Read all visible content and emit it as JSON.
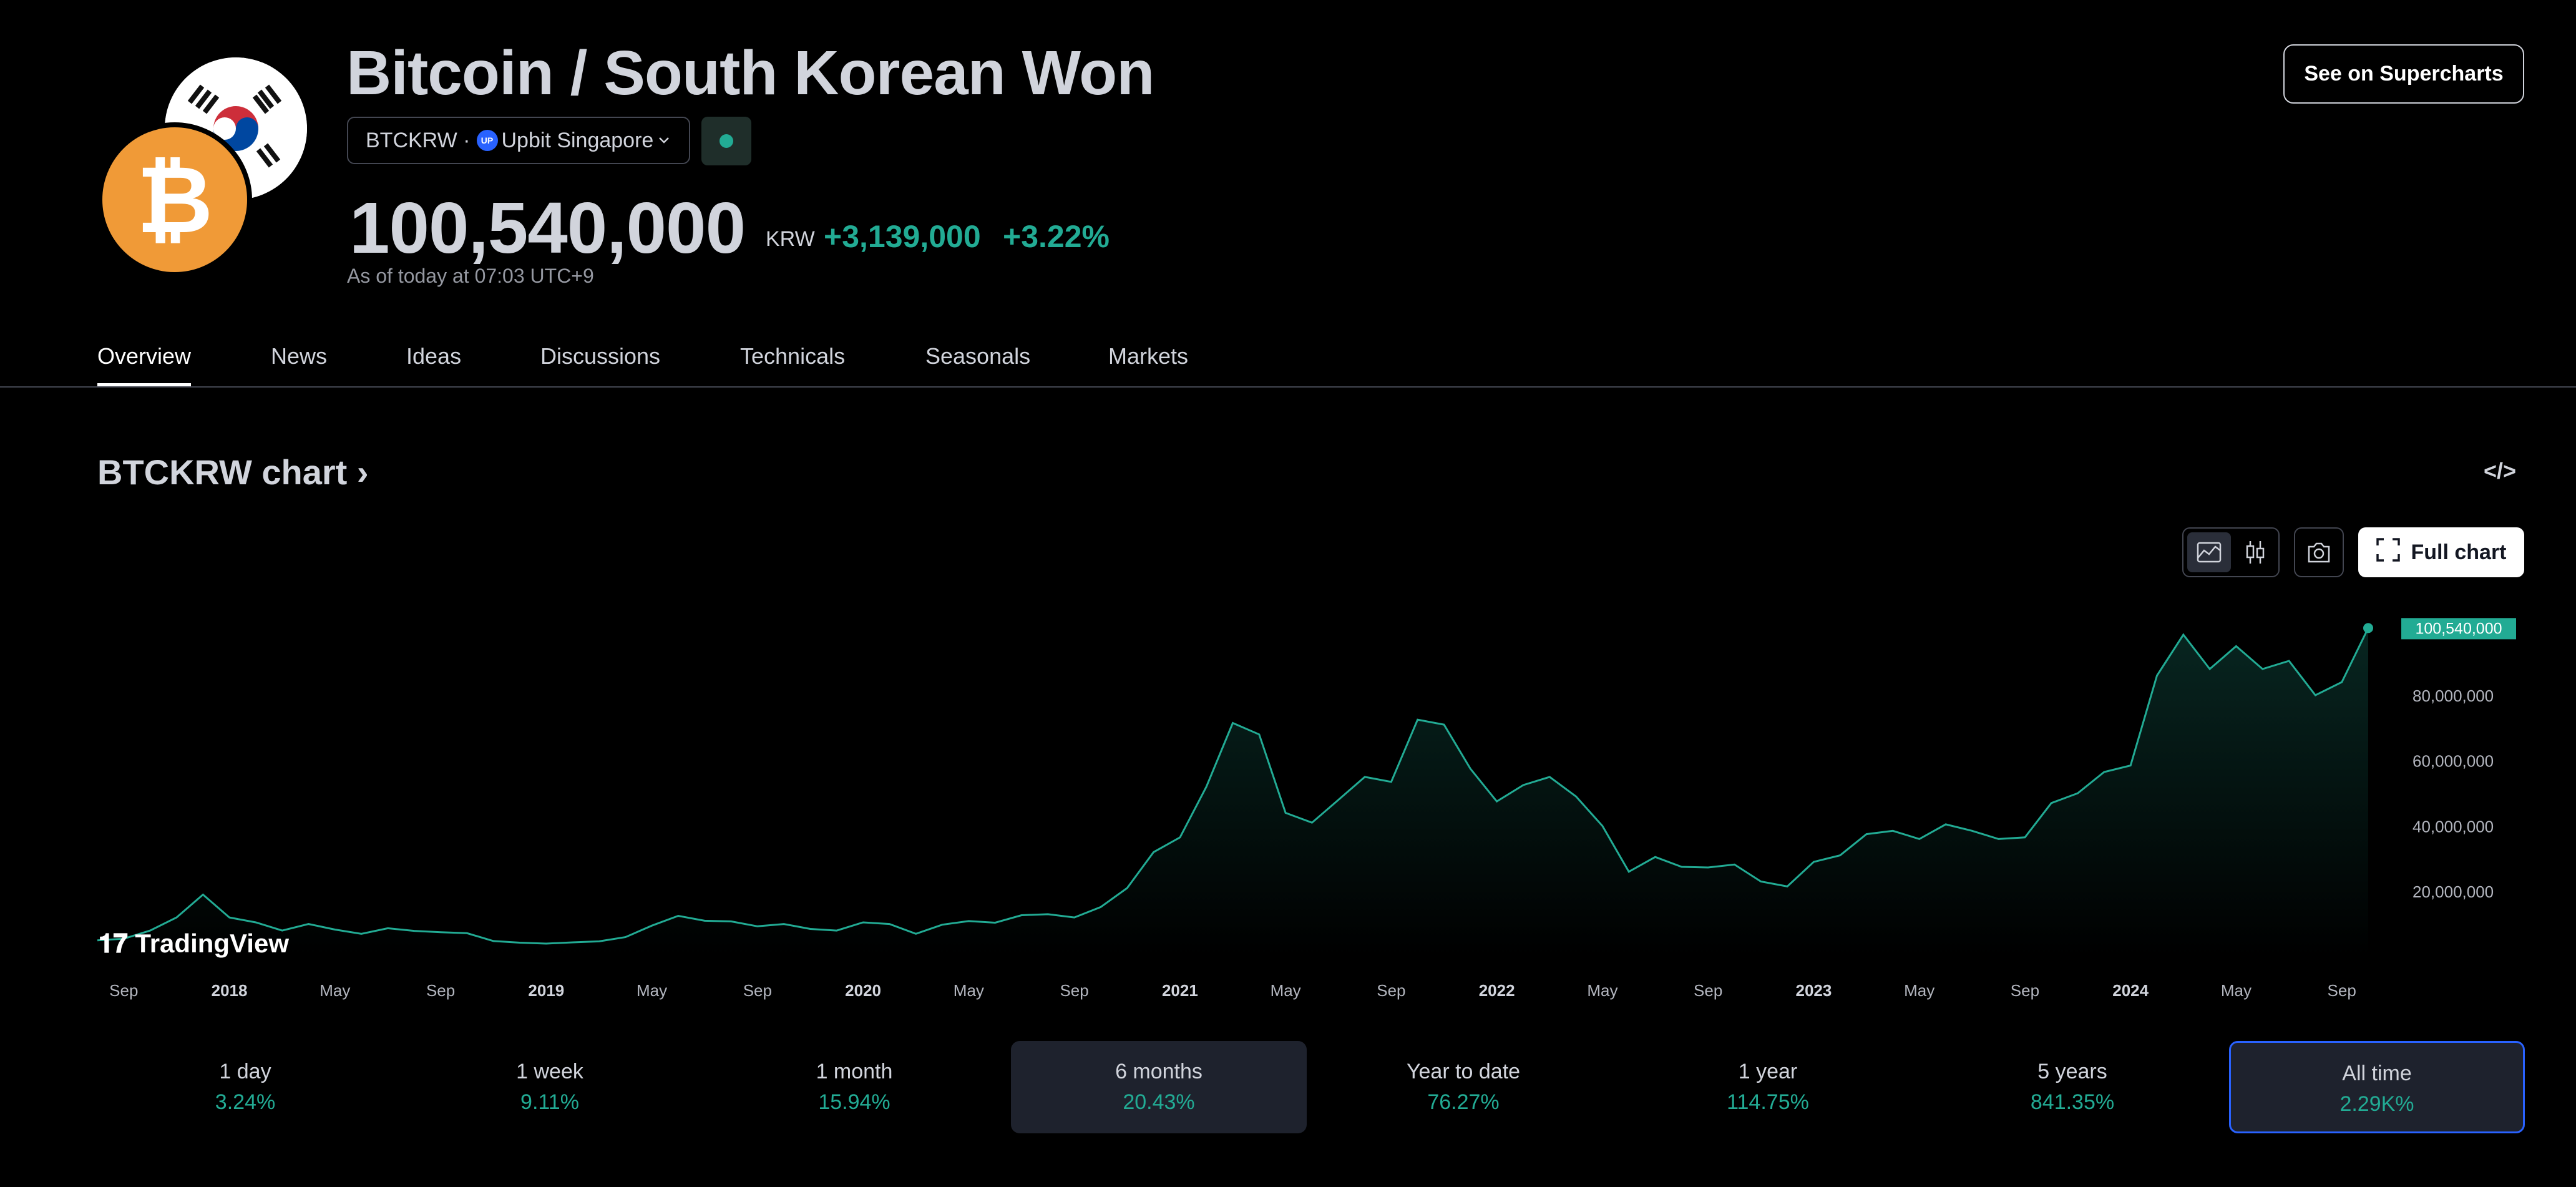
{
  "header": {
    "title": "Bitcoin / South Korean Won",
    "symbol": "BTCKRW",
    "exchange": "Upbit Singapore",
    "price": "100,540,000",
    "currency": "KRW",
    "change_abs": "+3,139,000",
    "change_pct": "+3.22%",
    "as_of": "As of today at 07:03 UTC+9",
    "supercharts_label": "See on Supercharts"
  },
  "tabs": [
    {
      "label": "Overview",
      "active": true
    },
    {
      "label": "News"
    },
    {
      "label": "Ideas"
    },
    {
      "label": "Discussions"
    },
    {
      "label": "Technicals"
    },
    {
      "label": "Seasonals"
    },
    {
      "label": "Markets"
    }
  ],
  "chart_header": {
    "title": "BTCKRW chart",
    "full_chart_label": "Full chart",
    "embed_icon": "code-icon",
    "line_icon": "area-chart-icon",
    "candle_icon": "candlestick-icon",
    "snapshot_icon": "camera-icon"
  },
  "tv_logo": "TradingView",
  "colors": {
    "line": "#22ab94",
    "accent": "#2962ff",
    "price_label_bg": "#22ab94"
  },
  "chart_data": {
    "type": "area",
    "series": [
      {
        "x": [
          "2017-08",
          "2017-09",
          "2017-10",
          "2017-11",
          "2017-12",
          "2018-01",
          "2018-02",
          "2018-03",
          "2018-04",
          "2018-05",
          "2018-06",
          "2018-07",
          "2018-08",
          "2018-09",
          "2018-10",
          "2018-11",
          "2018-12",
          "2019-01",
          "2019-02",
          "2019-03",
          "2019-04",
          "2019-05",
          "2019-06",
          "2019-07",
          "2019-08",
          "2019-09",
          "2019-10",
          "2019-11",
          "2019-12",
          "2020-01",
          "2020-02",
          "2020-03",
          "2020-04",
          "2020-05",
          "2020-06",
          "2020-07",
          "2020-08",
          "2020-09",
          "2020-10",
          "2020-11",
          "2020-12",
          "2021-01",
          "2021-02",
          "2021-03",
          "2021-04",
          "2021-05",
          "2021-06",
          "2021-07",
          "2021-08",
          "2021-09",
          "2021-10",
          "2021-11",
          "2021-12",
          "2022-01",
          "2022-02",
          "2022-03",
          "2022-04",
          "2022-05",
          "2022-06",
          "2022-07",
          "2022-08",
          "2022-09",
          "2022-10",
          "2022-11",
          "2022-12",
          "2023-01",
          "2023-02",
          "2023-03",
          "2023-04",
          "2023-05",
          "2023-06",
          "2023-07",
          "2023-08",
          "2023-09",
          "2023-10",
          "2023-11",
          "2023-12",
          "2024-01",
          "2024-02",
          "2024-03",
          "2024-04",
          "2024-05",
          "2024-06",
          "2024-07",
          "2024-08",
          "2024-09",
          "2024-10"
        ],
        "values": [
          5000000,
          5500000,
          8000000,
          12000000,
          19000000,
          12000000,
          10500000,
          8000000,
          10000000,
          8300000,
          7000000,
          8700000,
          7900000,
          7500000,
          7200000,
          4800000,
          4300000,
          4000000,
          4400000,
          4700000,
          6000000,
          9500000,
          12500000,
          11000000,
          10800000,
          9300000,
          10000000,
          8500000,
          8000000,
          10500000,
          10000000,
          7000000,
          9800000,
          10900000,
          10400000,
          12700000,
          13000000,
          12000000,
          15200000,
          21000000,
          32000000,
          36500000,
          52000000,
          71500000,
          68000000,
          44000000,
          41000000,
          48000000,
          55000000,
          53500000,
          72500000,
          71000000,
          57500000,
          47500000,
          52500000,
          55000000,
          49000000,
          40000000,
          26000000,
          30500000,
          27500000,
          27300000,
          28200000,
          23000000,
          21500000,
          29000000,
          31000000,
          37500000,
          38500000,
          36000000,
          40500000,
          38500000,
          36000000,
          36500000,
          47000000,
          50000000,
          56500000,
          58500000,
          86000000,
          98500000,
          88000000,
          95000000,
          88000000,
          90500000,
          80000000,
          84000000,
          100540000
        ]
      }
    ],
    "ylim": [
      0,
      105000000
    ],
    "yticks": [
      "20,000,000",
      "40,000,000",
      "60,000,000",
      "80,000,000"
    ],
    "ytick_values": [
      20000000,
      40000000,
      60000000,
      80000000
    ],
    "last_price_label": "100,540,000",
    "xtick_labels": [
      "Sep",
      "2018",
      "May",
      "Sep",
      "2019",
      "May",
      "Sep",
      "2020",
      "May",
      "Sep",
      "2021",
      "May",
      "Sep",
      "2022",
      "May",
      "Sep",
      "2023",
      "May",
      "Sep",
      "2024",
      "May",
      "Sep"
    ],
    "xtick_dates": [
      "2017-09",
      "2018-01",
      "2018-05",
      "2018-09",
      "2019-01",
      "2019-05",
      "2019-09",
      "2020-01",
      "2020-05",
      "2020-09",
      "2021-01",
      "2021-05",
      "2021-09",
      "2022-01",
      "2022-05",
      "2022-09",
      "2023-01",
      "2023-05",
      "2023-09",
      "2024-01",
      "2024-05",
      "2024-09"
    ],
    "xtick_bold": [
      false,
      true,
      false,
      false,
      true,
      false,
      false,
      true,
      false,
      false,
      true,
      false,
      false,
      true,
      false,
      false,
      true,
      false,
      false,
      true,
      false,
      false
    ]
  },
  "periods": [
    {
      "label": "1 day",
      "value": "3.24%"
    },
    {
      "label": "1 week",
      "value": "9.11%"
    },
    {
      "label": "1 month",
      "value": "15.94%"
    },
    {
      "label": "6 months",
      "value": "20.43%",
      "state": "sel"
    },
    {
      "label": "Year to date",
      "value": "76.27%"
    },
    {
      "label": "1 year",
      "value": "114.75%"
    },
    {
      "label": "5 years",
      "value": "841.35%"
    },
    {
      "label": "All time",
      "value": "2.29K%",
      "state": "active"
    }
  ]
}
